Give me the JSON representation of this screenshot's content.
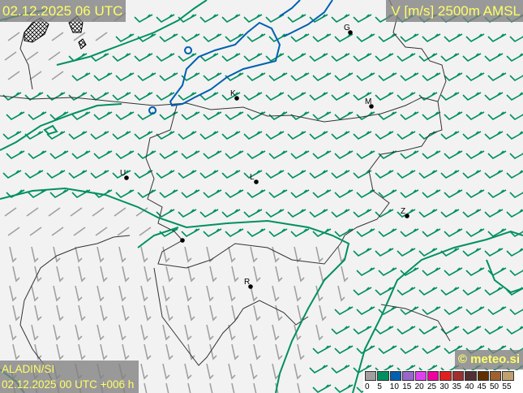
{
  "header": {
    "valid_time": "02.12.2025 06 UTC",
    "field_title": "V [m/s] 2500m AMSL"
  },
  "footer": {
    "model": "ALADIN/SI",
    "run": "02.12.2025 00 UTC +006 h",
    "copyright": "© meteo.si"
  },
  "legend": {
    "ticks": [
      "0",
      "5",
      "10",
      "15",
      "20",
      "25",
      "30",
      "35",
      "40",
      "45",
      "50",
      "55"
    ],
    "colors": [
      "#a0a0a0",
      "#009060",
      "#0060b0",
      "#9966cc",
      "#e040f0",
      "#f000a0",
      "#e02020",
      "#a03030",
      "#503030",
      "#603000",
      "#a06030",
      "#c0a070"
    ]
  },
  "colors": {
    "wind_calm": "#a0a0a0",
    "wind_5_10": "#009060",
    "isotach_5": "#009060",
    "isotach_10": "#0060b0",
    "border": "#333333",
    "label_text": "#ffff66"
  },
  "cities": [
    {
      "label": "G"
    },
    {
      "label": "K"
    },
    {
      "label": "M"
    },
    {
      "label": "U"
    },
    {
      "label": "L"
    },
    {
      "label": "Z"
    },
    {
      "label": ""
    },
    {
      "label": "R"
    }
  ]
}
